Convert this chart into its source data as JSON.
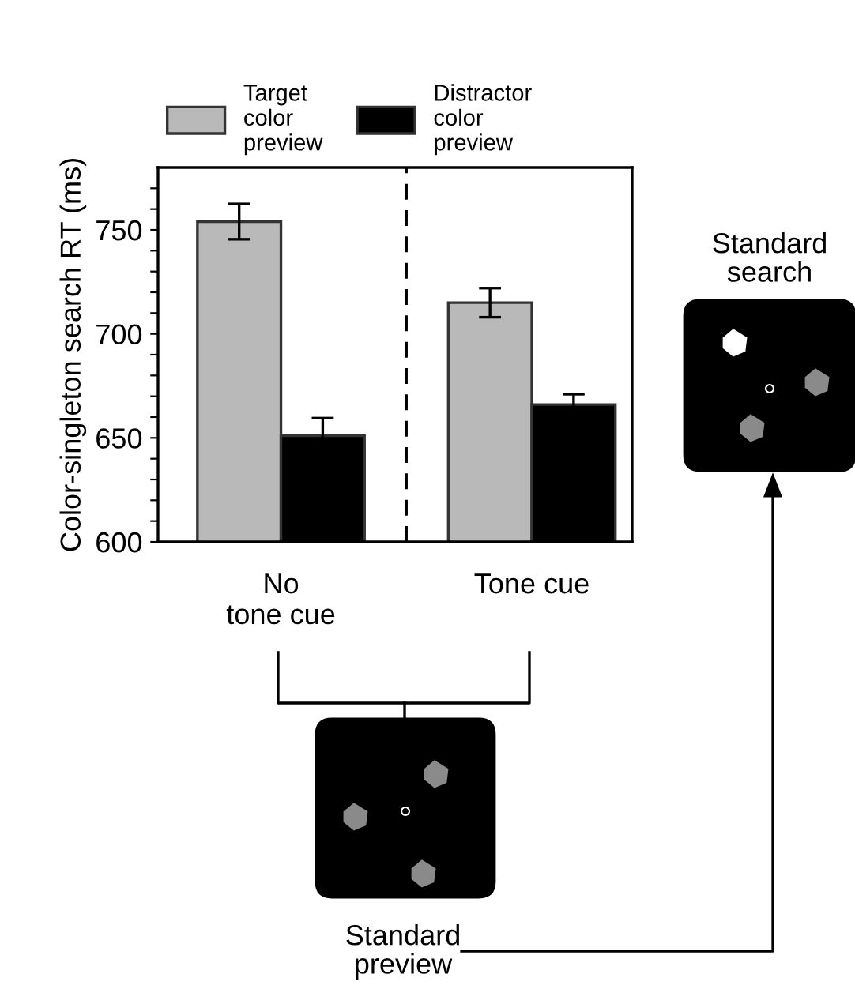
{
  "chart_data": {
    "type": "bar",
    "ylabel": "Color-singleton search RT (ms)",
    "categories": [
      "No\ntone cue",
      "Tone cue"
    ],
    "series": [
      {
        "name": "Target\ncolor\npreview",
        "color": "#b9b9b9",
        "values": [
          754,
          715
        ],
        "errors": [
          8.5,
          7
        ]
      },
      {
        "name": "Distractor\ncolor\npreview",
        "color": "#000000",
        "values": [
          651,
          666
        ],
        "errors": [
          8.5,
          5
        ]
      }
    ],
    "ylim": [
      600,
      780
    ],
    "yticks": [
      600,
      {
        "value": 610,
        "label": null
      },
      {
        "value": 620,
        "label": null
      },
      {
        "value": 630,
        "label": null
      },
      {
        "value": 640,
        "label": null
      },
      650,
      {
        "value": 660,
        "label": null
      },
      {
        "value": 670,
        "label": null
      },
      {
        "value": 680,
        "label": null
      },
      {
        "value": 690,
        "label": null
      },
      700,
      {
        "value": 710,
        "label": null
      },
      {
        "value": 720,
        "label": null
      },
      {
        "value": 730,
        "label": null
      },
      {
        "value": 740,
        "label": null
      },
      750,
      {
        "value": 760,
        "label": null
      },
      {
        "value": 770,
        "label": null
      }
    ],
    "annotations": [
      "Standard\nsearch",
      "Standard\npreview"
    ],
    "legend": "top",
    "grid": false
  }
}
